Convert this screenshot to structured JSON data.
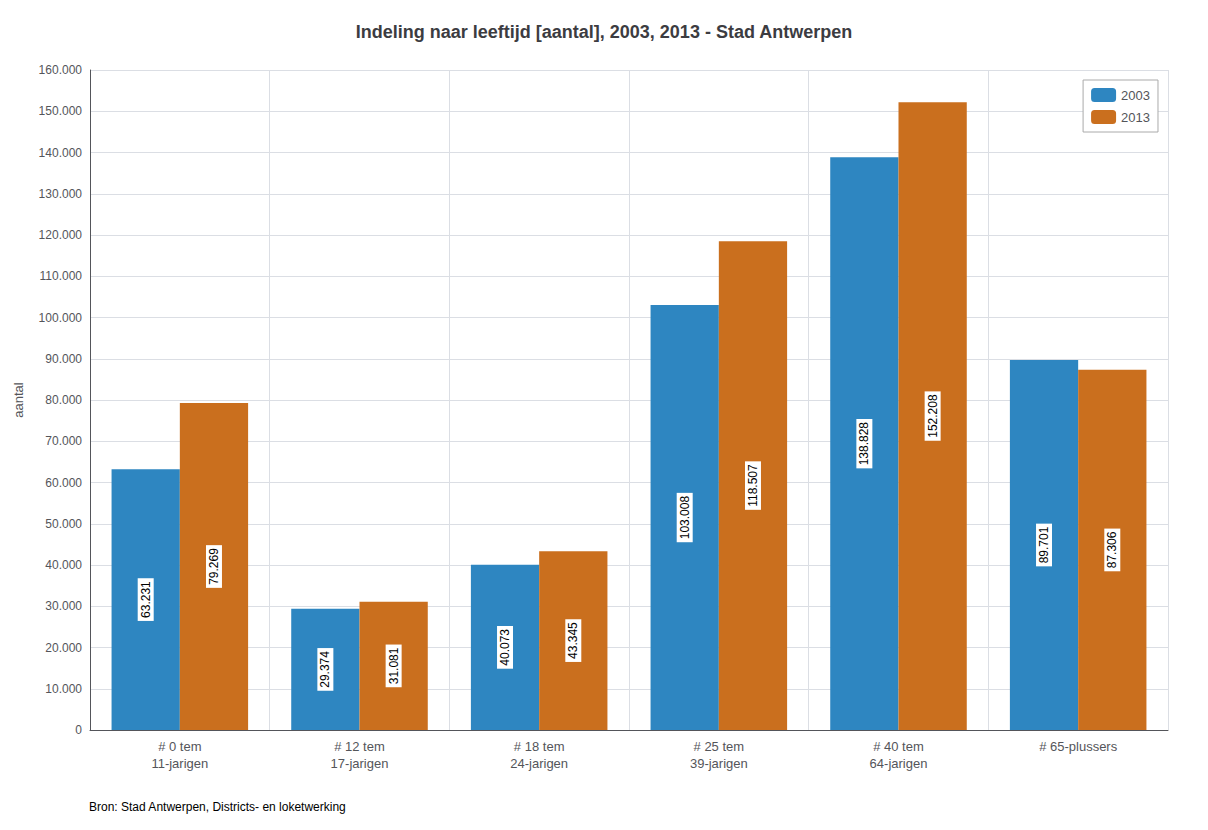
{
  "chart_data": {
    "type": "bar",
    "title": "Indeling naar leeftijd [aantal], 2003, 2013 - Stad Antwerpen",
    "ylabel": "aantal",
    "caption": "Bron: Stad Antwerpen, Districts- en loketwerking",
    "categories": [
      "# 0 tem\n11-jarigen",
      "# 12 tem\n17-jarigen",
      "# 18 tem\n24-jarigen",
      "# 25 tem\n39-jarigen",
      "# 40 tem\n64-jarigen",
      "# 65-plussers"
    ],
    "series": [
      {
        "name": "2003",
        "color": "#2E86C1",
        "values": [
          63231,
          29374,
          40073,
          103008,
          138828,
          89701
        ],
        "value_labels": [
          "63.231",
          "29.374",
          "40.073",
          "103.008",
          "138.828",
          "89.701"
        ]
      },
      {
        "name": "2013",
        "color": "#CA6F1E",
        "values": [
          79269,
          31081,
          43345,
          118507,
          152208,
          87306
        ],
        "value_labels": [
          "79.269",
          "31.081",
          "43.345",
          "118.507",
          "152.208",
          "87.306"
        ]
      }
    ],
    "ylim": [
      0,
      160000
    ],
    "yticks": [
      0,
      {
        "value": 10000,
        "label": "10.000"
      },
      {
        "value": 20000,
        "label": "20.000"
      },
      {
        "value": 30000,
        "label": "30.000"
      },
      {
        "value": 40000,
        "label": "40.000"
      },
      {
        "value": 50000,
        "label": "50.000"
      },
      {
        "value": 60000,
        "label": "60.000"
      },
      {
        "value": 70000,
        "label": "70.000"
      },
      {
        "value": 80000,
        "label": "80.000"
      },
      {
        "value": 90000,
        "label": "90.000"
      },
      {
        "value": 100000,
        "label": "100.000"
      },
      {
        "value": 110000,
        "label": "110.000"
      },
      {
        "value": 120000,
        "label": "120.000"
      },
      {
        "value": 130000,
        "label": "130.000"
      },
      {
        "value": 140000,
        "label": "140.000"
      },
      {
        "value": 150000,
        "label": "150.000"
      },
      {
        "value": 160000,
        "label": "160.000"
      }
    ],
    "grid": true,
    "legend": "upper right",
    "data_labels": true
  }
}
